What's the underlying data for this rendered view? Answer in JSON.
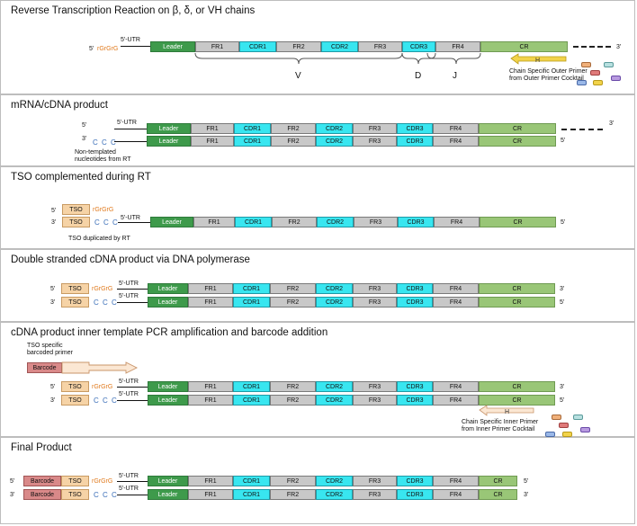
{
  "segments": {
    "leader": "Leader",
    "fr1": "FR1",
    "cdr1": "CDR1",
    "fr2": "FR2",
    "cdr2": "CDR2",
    "fr3": "FR3",
    "cdr3": "CDR3",
    "fr4": "FR4",
    "cr": "CR",
    "tso": "TSO",
    "barcode": "Barcode"
  },
  "labels": {
    "five_prime": "5'",
    "three_prime": "3'",
    "utr": "5'-UTR",
    "rgrgrg": "rGrGrG",
    "ccc": "C C C"
  },
  "panel1": {
    "title": "Reverse Transcription Reaction on β, δ, or VH chains",
    "brace_v": "V",
    "brace_d": "D",
    "brace_j": "J",
    "outer_primer_line1": "Chain Specific Outer Primer",
    "outer_primer_line2": "from Outer Primer Cocktail"
  },
  "panel2": {
    "title": "mRNA/cDNA product",
    "note_line1": "Non-templated",
    "note_line2": "nucleotides from RT"
  },
  "panel3": {
    "title": "TSO complemented during RT",
    "note": "TSO duplicated by RT"
  },
  "panel4": {
    "title": "Double stranded cDNA product via DNA polymerase"
  },
  "panel5": {
    "title": "cDNA product inner template PCR amplification and barcode addition",
    "barcoded_primer_line1": "TSO specific",
    "barcoded_primer_line2": "barcoded primer",
    "inner_primer_line1": "Chain Specific Inner Primer",
    "inner_primer_line2": "from Inner Primer Cocktail"
  },
  "panel6": {
    "title": "Final Product"
  },
  "colors": {
    "leader": "#3e9a4b",
    "fr": "#c8c8c8",
    "cdr": "#38e6f0",
    "cr": "#99c677",
    "tso": "#f6d3a6",
    "barcode": "#d98989",
    "rgrgrg": "#e07a1d",
    "ccc": "#3a6eb8",
    "primer": "#f2d34a"
  }
}
